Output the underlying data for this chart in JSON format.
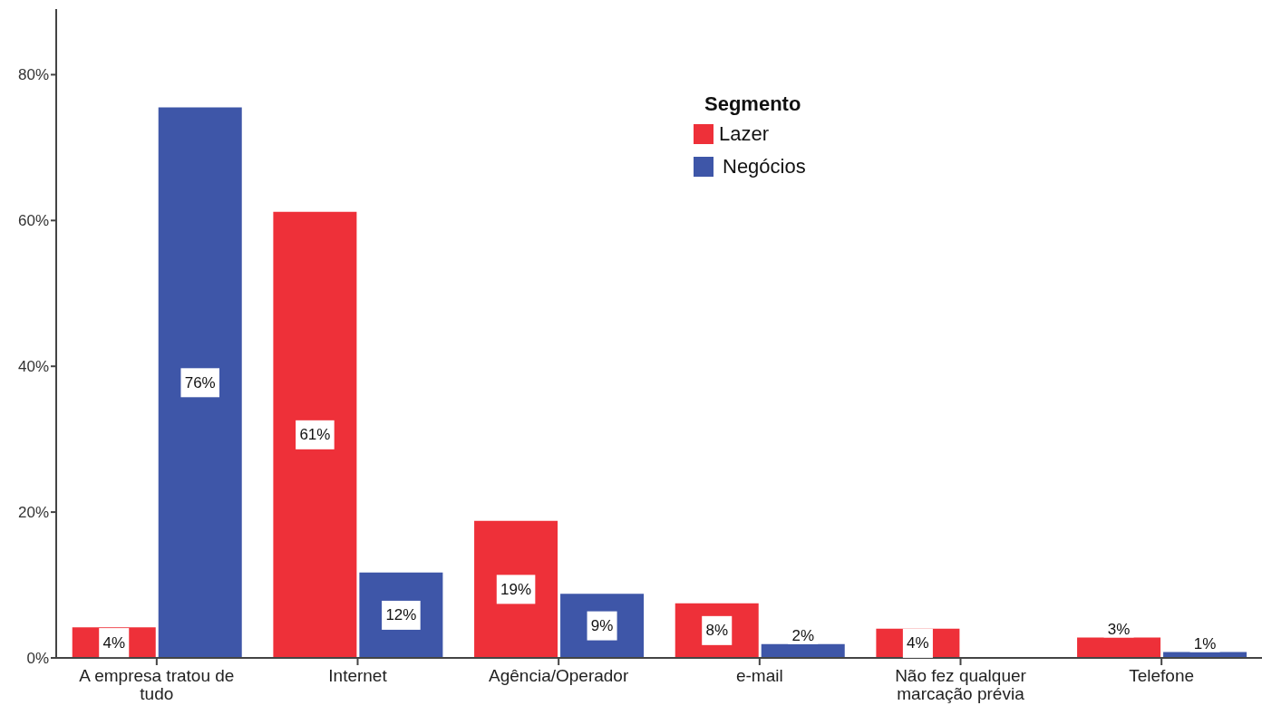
{
  "chart_data": {
    "type": "bar",
    "categories": [
      "A empresa tratou de tudo",
      "Internet",
      "Agência/Operador",
      "e-mail",
      "Não fez qualquer marcação prévia",
      "Telefone"
    ],
    "series": [
      {
        "name": "Lazer",
        "color": "#ee3039",
        "values": [
          4.2,
          61.2,
          18.8,
          7.5,
          4.0,
          2.8
        ],
        "value_labels": [
          "4%",
          "61%",
          "19%",
          "8%",
          "4%",
          "3%"
        ]
      },
      {
        "name": "Negócios",
        "color": "#3e56a8",
        "values": [
          75.5,
          11.7,
          8.8,
          1.9,
          null,
          0.8
        ],
        "value_labels": [
          "76%",
          "12%",
          "9%",
          "2%",
          null,
          "1%"
        ]
      }
    ],
    "legend_title": "Segmento",
    "legend": "top",
    "ylim": [
      0,
      89
    ],
    "yticks": [
      {
        "value": 0,
        "label": "0%"
      },
      {
        "value": 20,
        "label": "20%"
      },
      {
        "value": 40,
        "label": "40%"
      },
      {
        "value": 60,
        "label": "60%"
      },
      {
        "value": 80,
        "label": "80%"
      }
    ]
  }
}
